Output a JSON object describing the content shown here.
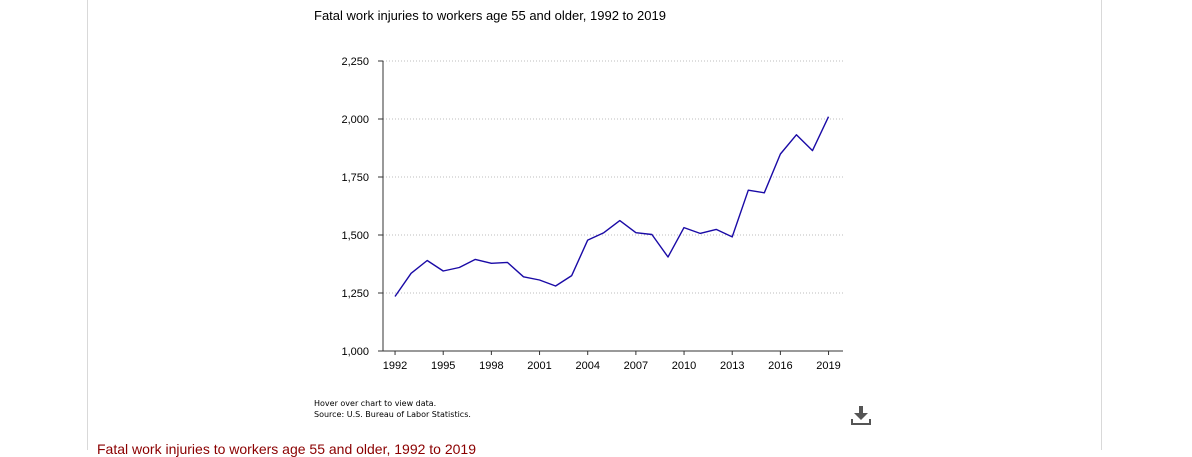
{
  "page": {
    "hover_note": "Hover over chart to view data.",
    "source_note": "Source: U.S. Bureau of Labor Statistics.",
    "bottom_title": "Fatal work injuries to workers age 55 and older, 1992 to 2019",
    "download_icon": "download-icon"
  },
  "chart_data": {
    "type": "line",
    "title": "Fatal work injuries to workers age 55 and older, 1992 to 2019",
    "xlabel": "",
    "ylabel": "",
    "ylim": [
      1000,
      2250
    ],
    "yticks": [
      1000,
      1250,
      1500,
      1750,
      2000,
      2250
    ],
    "ytick_labels": [
      "1,000",
      "1,250",
      "1,500",
      "1,750",
      "2,000",
      "2,250"
    ],
    "xticks": [
      1992,
      1995,
      1998,
      2001,
      2004,
      2007,
      2010,
      2013,
      2016,
      2019
    ],
    "xtick_labels": [
      "1992",
      "1995",
      "1998",
      "2001",
      "2004",
      "2007",
      "2010",
      "2013",
      "2016",
      "2019"
    ],
    "grid": true,
    "line_color": "#1a0aa6",
    "x": [
      1992,
      1993,
      1994,
      1995,
      1996,
      1997,
      1998,
      1999,
      2000,
      2001,
      2002,
      2003,
      2004,
      2005,
      2006,
      2007,
      2008,
      2009,
      2010,
      2011,
      2012,
      2013,
      2014,
      2015,
      2016,
      2017,
      2018,
      2019
    ],
    "series": [
      {
        "values": [
          1235,
          1335,
          1390,
          1345,
          1360,
          1395,
          1378,
          1382,
          1320,
          1306,
          1280,
          1325,
          1478,
          1510,
          1562,
          1510,
          1502,
          1405,
          1532,
          1507,
          1524,
          1492,
          1693,
          1682,
          1849,
          1932,
          1864,
          2010
        ]
      }
    ]
  }
}
